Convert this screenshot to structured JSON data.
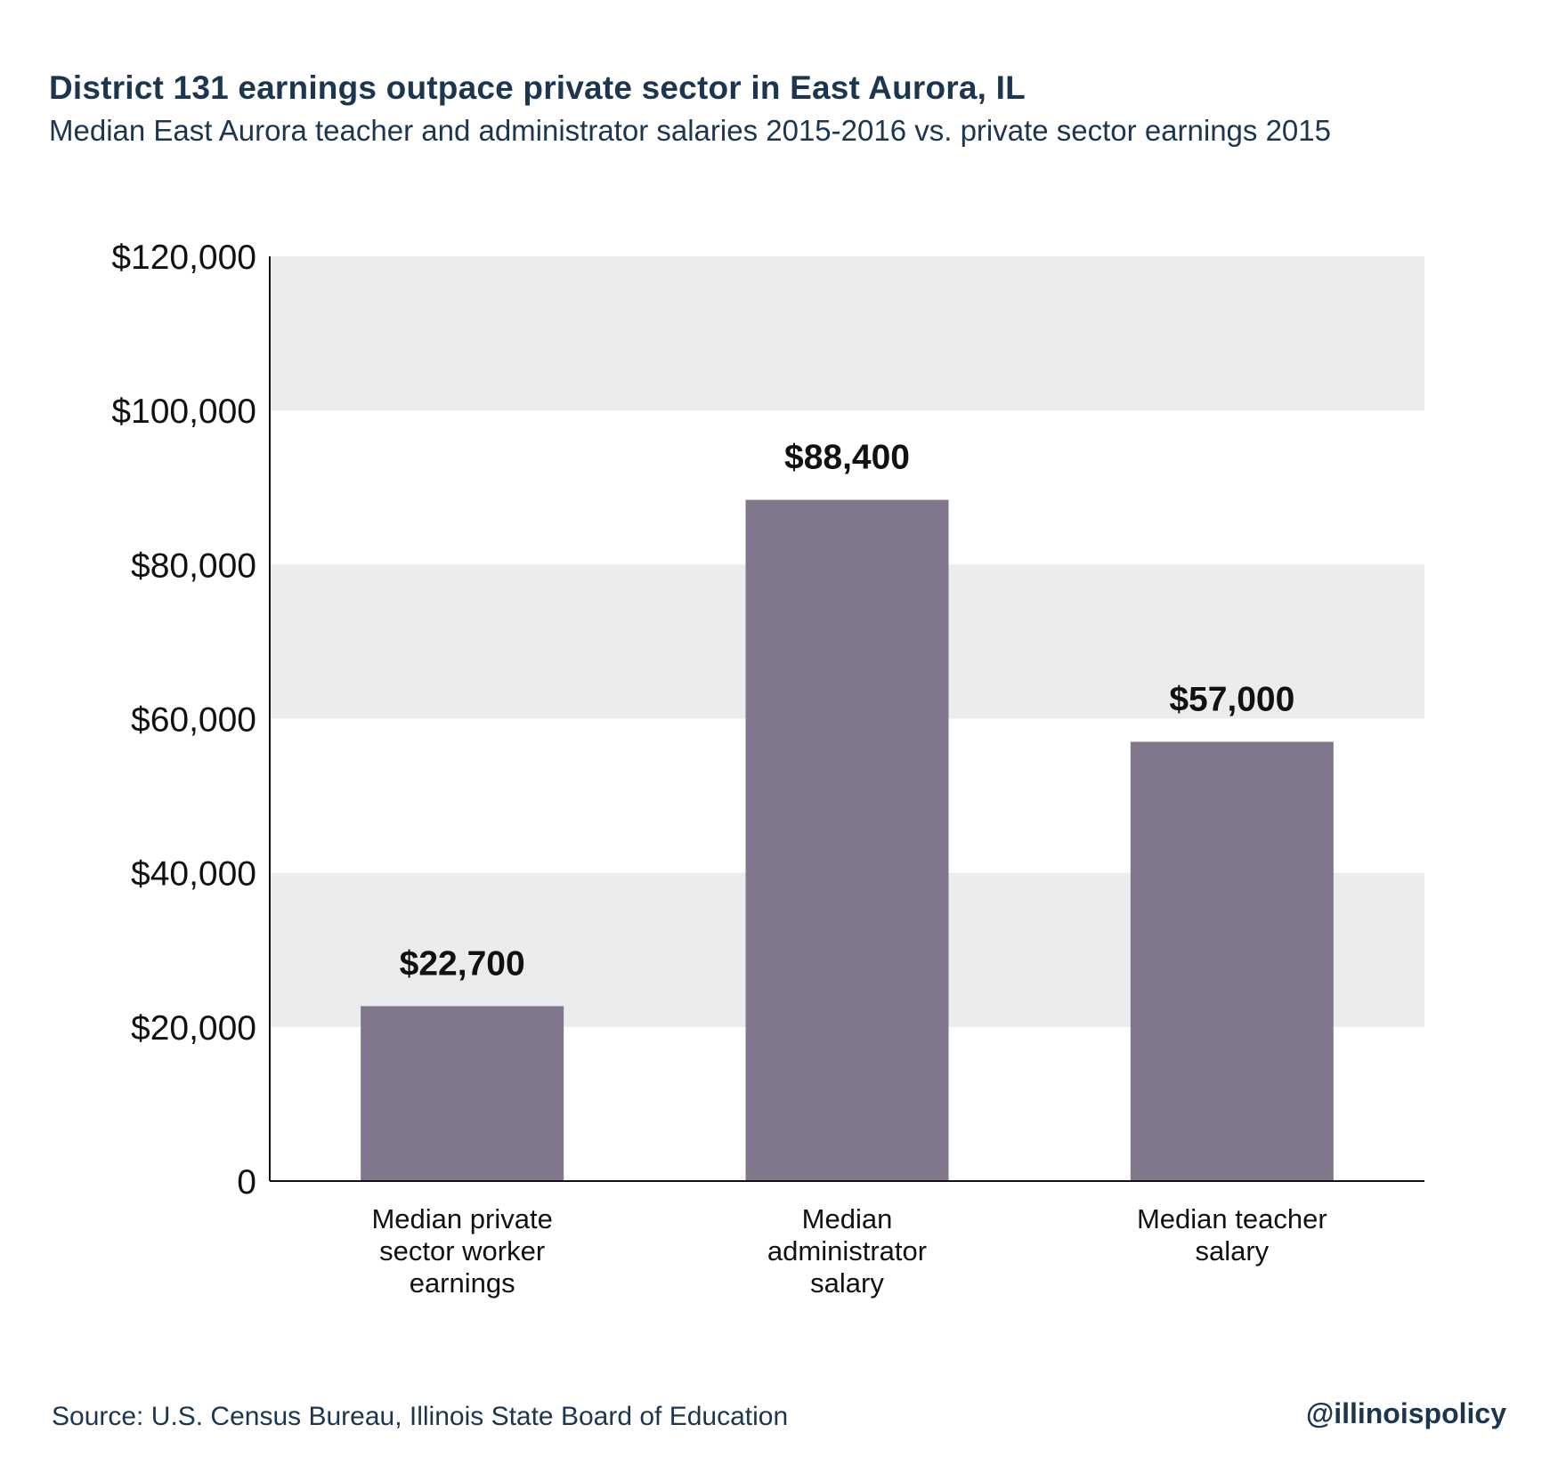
{
  "header": {
    "title": "District 131 earnings outpace private sector in East Aurora, IL",
    "subtitle": "Median East Aurora teacher and administrator salaries 2015-2016 vs. private sector earnings 2015"
  },
  "footer": {
    "source": "Source: U.S. Census Bureau, Illinois State Board of Education",
    "handle": "@illinoispolicy"
  },
  "colors": {
    "bar": "#80778c",
    "band": "#ebecee",
    "axis": "#111111",
    "text": "#1c3650"
  },
  "chart_data": {
    "type": "bar",
    "title": "District 131 earnings outpace private sector in East Aurora, IL",
    "subtitle": "Median East Aurora teacher and administrator salaries 2015-2016 vs. private sector earnings 2015",
    "categories": [
      [
        "Median private",
        "sector worker",
        "earnings"
      ],
      [
        "Median",
        "administrator",
        "salary"
      ],
      [
        "Median teacher",
        "salary"
      ]
    ],
    "values": [
      22700,
      88400,
      57000
    ],
    "data_labels": [
      "$22,700",
      "$88,400",
      "$57,000"
    ],
    "ylim": [
      0,
      120000
    ],
    "yticks": [
      0,
      20000,
      40000,
      60000,
      80000,
      100000,
      120000
    ],
    "ytick_labels": [
      "0",
      "$20,000",
      "$40,000",
      "$60,000",
      "$80,000",
      "$100,000",
      "$120,000"
    ],
    "xlabel": "",
    "ylabel": "",
    "grid": "alternating horizontal bands",
    "legend": "none"
  }
}
